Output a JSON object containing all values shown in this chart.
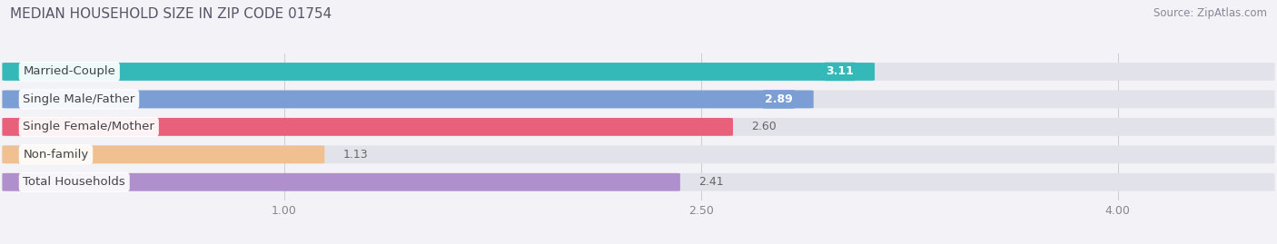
{
  "title": "MEDIAN HOUSEHOLD SIZE IN ZIP CODE 01754",
  "source": "Source: ZipAtlas.com",
  "categories": [
    "Married-Couple",
    "Single Male/Father",
    "Single Female/Mother",
    "Non-family",
    "Total Households"
  ],
  "values": [
    3.11,
    2.89,
    2.6,
    1.13,
    2.41
  ],
  "bar_colors": [
    "#35b8b8",
    "#7b9fd4",
    "#e8607a",
    "#f0c090",
    "#b090cc"
  ],
  "xmin": 0.0,
  "xmax": 4.55,
  "xlim_left": 0.0,
  "xlim_right": 4.55,
  "xticks": [
    1.0,
    2.5,
    4.0
  ],
  "xtick_labels": [
    "1.00",
    "2.50",
    "4.00"
  ],
  "title_fontsize": 11,
  "source_fontsize": 8.5,
  "label_fontsize": 9.5,
  "value_fontsize": 9,
  "bar_height": 0.62,
  "background_color": "#f2f2f7",
  "bar_bg_color": "#e2e2ea",
  "value_inside_threshold": 2.7,
  "value_outside_color": "#666666",
  "value_inside_color": "#ffffff",
  "label_text_color": "#444444"
}
